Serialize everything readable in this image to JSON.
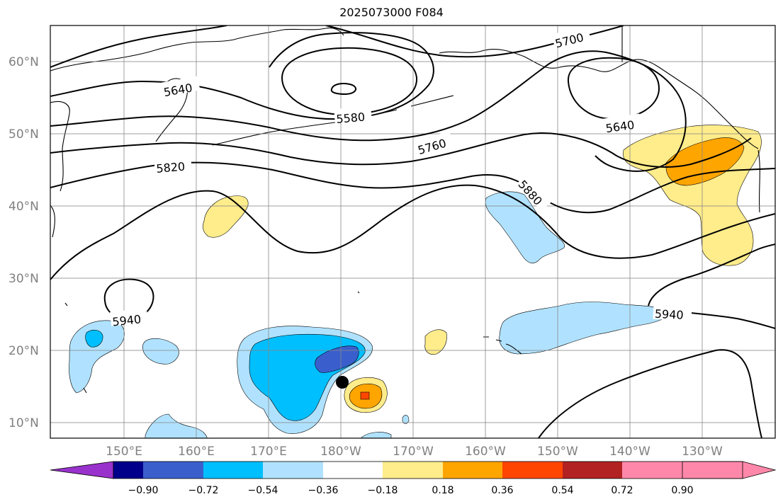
{
  "title": "2025073000 F084",
  "lat_labels": [
    "60°N",
    "50°N",
    "40°N",
    "30°N",
    "20°N",
    "10°N"
  ],
  "lon_labels": [
    "150°E",
    "160°E",
    "170°E",
    "180°W",
    "170°W",
    "160°W",
    "150°W",
    "140°W",
    "130°W"
  ],
  "contour_labels": [
    "5700",
    "5640",
    "5580",
    "5760",
    "5640",
    "5820",
    "5880",
    "5940",
    "5940"
  ],
  "colorbar": {
    "ticks": [
      "−0.90",
      "−0.72",
      "−0.54",
      "−0.36",
      "−0.18",
      "0.18",
      "0.36",
      "0.54",
      "0.72",
      "0.90"
    ],
    "colors": [
      "#9932cc",
      "#00008b",
      "#3a5fcd",
      "#00bfff",
      "#b0e2ff",
      "#ffffff",
      "#ffec8b",
      "#ffa500",
      "#ff4500",
      "#b22222",
      "#ff88aa"
    ]
  },
  "fill_colors": {
    "light_blue": "#b0e2ff",
    "mid_blue": "#00bfff",
    "dark_blue": "#3a5fcd",
    "light_yellow": "#ffec8b",
    "orange": "#ffa500",
    "red_orange": "#ff4500"
  },
  "marker_color": "#000000"
}
